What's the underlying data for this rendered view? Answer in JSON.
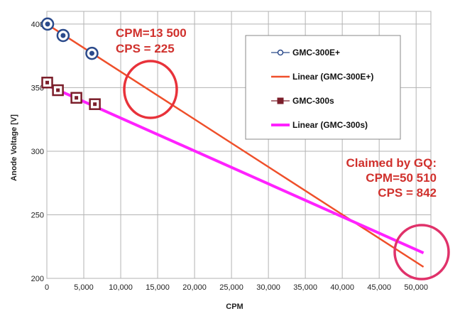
{
  "chart_data": {
    "type": "scatter",
    "xlabel": "CPM",
    "ylabel": "Anode Voltage [V]",
    "xlim": [
      0,
      52000
    ],
    "ylim": [
      200,
      410
    ],
    "x_ticks": [
      0,
      5000,
      10000,
      15000,
      20000,
      25000,
      30000,
      35000,
      40000,
      45000,
      50000
    ],
    "x_tick_labels": [
      "0",
      "5,000",
      "10,000",
      "15,000",
      "20,000",
      "25,000",
      "30,000",
      "35,000",
      "40,000",
      "45,000",
      "50,000"
    ],
    "y_ticks": [
      200,
      250,
      300,
      350,
      400
    ],
    "y_tick_labels": [
      "200",
      "250",
      "300",
      "350",
      "400"
    ],
    "grid": true,
    "legend_position": "top-right",
    "series": [
      {
        "name": "GMC-300E+",
        "kind": "points",
        "color": "#2b4a8b",
        "marker": "circle",
        "x": [
          100,
          2200,
          6100
        ],
        "y": [
          400,
          391,
          377
        ]
      },
      {
        "name": "Linear (GMC-300E+)",
        "kind": "line",
        "color": "#ef4f2a",
        "x": [
          0,
          51000
        ],
        "y": [
          400,
          209
        ]
      },
      {
        "name": "GMC-300s",
        "kind": "points",
        "color": "#7b1e2a",
        "marker": "square",
        "x": [
          50,
          1500,
          4000,
          6500
        ],
        "y": [
          354,
          348,
          342,
          337
        ]
      },
      {
        "name": "Linear (GMC-300s)",
        "kind": "line",
        "color": "#ff22ff",
        "x": [
          0,
          51000
        ],
        "y": [
          352,
          220
        ]
      }
    ],
    "annotations": [
      {
        "lines": [
          "CPM=13 500",
          "CPS = 225"
        ],
        "color": "#d0312d",
        "circle_at": [
          13500,
          346
        ]
      },
      {
        "lines": [
          "Claimed by GQ:",
          "CPM=50 510",
          "CPS = 842"
        ],
        "color": "#d0312d",
        "circle_at": [
          50510,
          211
        ]
      }
    ]
  }
}
